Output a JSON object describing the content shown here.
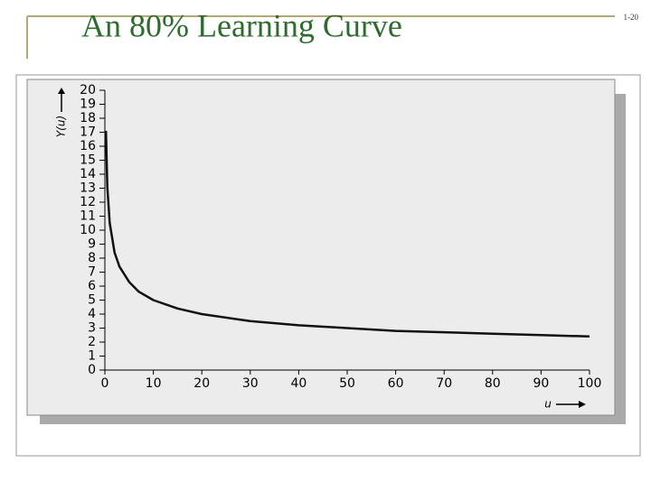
{
  "slide_title": "An 80% Learning Curve",
  "slide_number": "1-20",
  "chart_data": {
    "type": "line",
    "xlabel": "u",
    "ylabel": "Y(u)",
    "x": [
      0.22,
      0.5,
      1,
      2,
      3,
      5,
      7,
      10,
      15,
      20,
      30,
      40,
      50,
      60,
      70,
      80,
      90,
      100
    ],
    "series": [
      {
        "color": "#111111",
        "values": [
          17.1,
          13.1,
          10.5,
          8.4,
          7.4,
          6.3,
          5.6,
          5.0,
          4.4,
          4.0,
          3.5,
          3.2,
          3.0,
          2.8,
          2.7,
          2.6,
          2.5,
          2.4
        ]
      }
    ],
    "xlim": [
      0,
      100
    ],
    "ylim": [
      0,
      20
    ],
    "xticks": [
      0,
      10,
      20,
      30,
      40,
      50,
      60,
      70,
      80,
      90,
      100
    ],
    "yticks": [
      0,
      1,
      2,
      3,
      4,
      5,
      6,
      7,
      8,
      9,
      10,
      11,
      12,
      13,
      14,
      15,
      16,
      17,
      18,
      19,
      20
    ]
  }
}
